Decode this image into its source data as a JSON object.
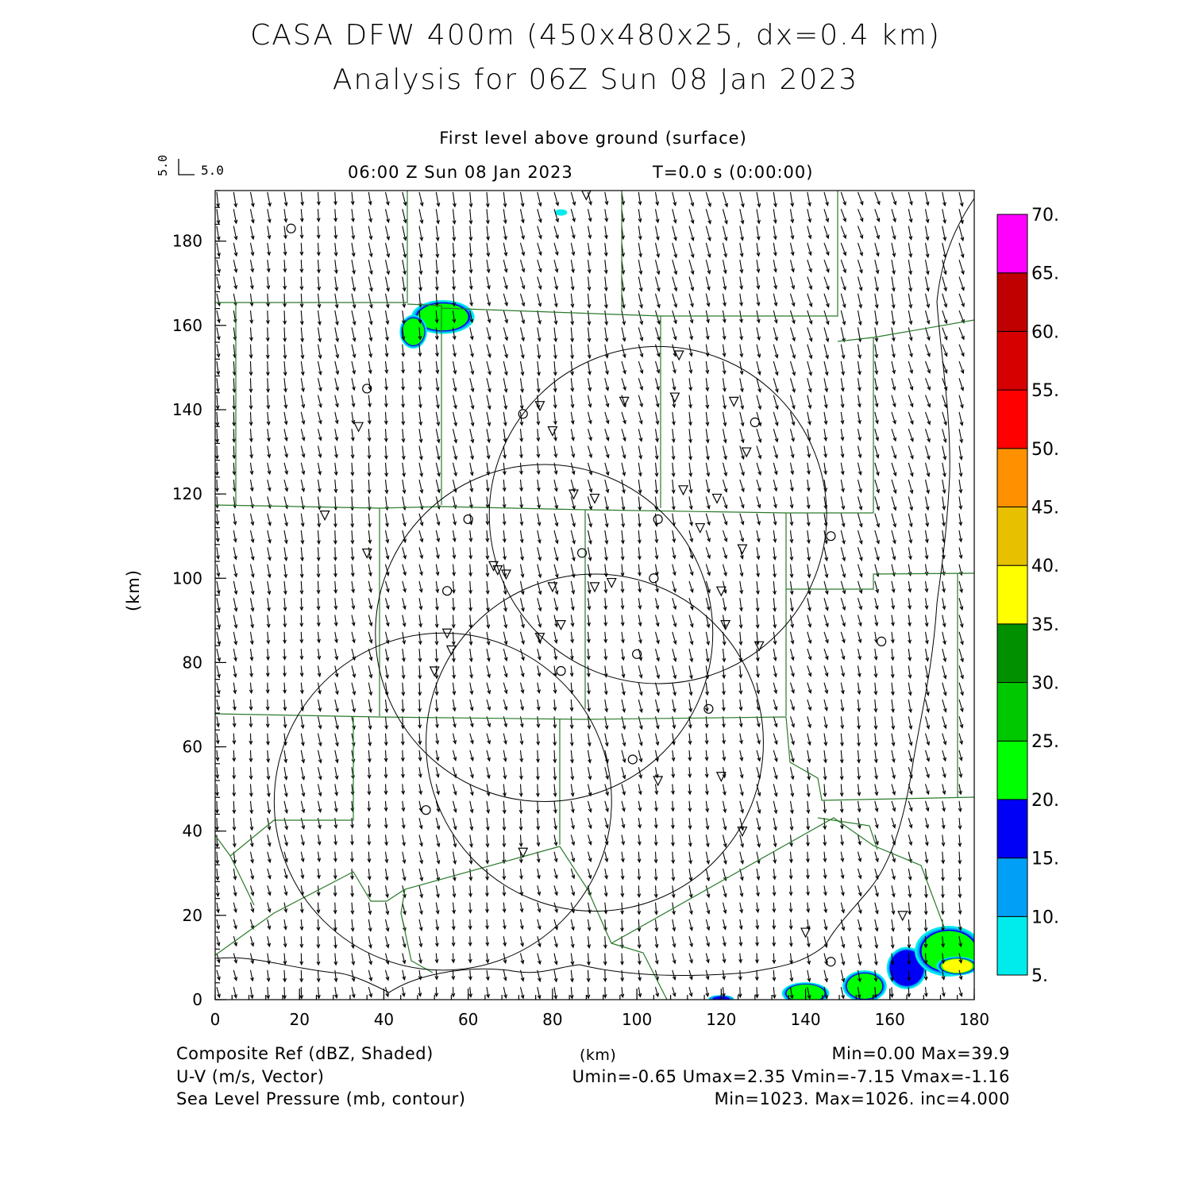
{
  "header": {
    "title_line1": "CASA DFW 400m (450x480x25, dx=0.4 km)",
    "title_line2": "Analysis for 06Z Sun 08 Jan 2023",
    "level": "First level above ground (surface)",
    "valid_time": "06:00 Z Sun 08 Jan 2023",
    "forecast_time": "T=0.0 s (0:00:00)",
    "vector_ref_u": "5.0",
    "vector_ref_v": "5.0"
  },
  "axes": {
    "x_unit": "(km)",
    "y_unit": "(km)",
    "x_ticks": [
      "0",
      "20",
      "40",
      "60",
      "80",
      "100",
      "120",
      "140",
      "160",
      "180"
    ],
    "y_ticks": [
      "0",
      "20",
      "40",
      "60",
      "80",
      "100",
      "120",
      "140",
      "160",
      "180"
    ],
    "xlim": [
      0,
      180
    ],
    "ylim": [
      0,
      192
    ]
  },
  "colorbar": {
    "labels": [
      "5.",
      "10.",
      "15.",
      "20.",
      "25.",
      "30.",
      "35.",
      "40.",
      "45.",
      "50.",
      "55.",
      "60.",
      "65.",
      "70."
    ],
    "colors": [
      "#00ecec",
      "#01a0f6",
      "#0000f6",
      "#00ff00",
      "#00c800",
      "#009000",
      "#ffff00",
      "#e7c000",
      "#ff9000",
      "#ff0000",
      "#d60000",
      "#c00000",
      "#ff00ff"
    ]
  },
  "footer": {
    "row1_left": "Composite Ref (dBZ, Shaded)",
    "row1_mid": "(km)",
    "row1_right": "Min=0.00 Max=39.9",
    "row2_left": "U-V (m/s, Vector)",
    "row2_right": "Umin=-0.65 Umax=2.35 Vmin=-7.15 Vmax=-1.16",
    "row3_left": "Sea Level Pressure (mb, contour)",
    "row3_right": "Min=1023. Max=1026. inc=4.000"
  },
  "map_data": {
    "radar_rings": [
      {
        "cx": 105,
        "cy": 115,
        "r": 40
      },
      {
        "cx": 78,
        "cy": 87,
        "r": 40
      },
      {
        "cx": 90,
        "cy": 61,
        "r": 40
      },
      {
        "cx": 54,
        "cy": 47,
        "r": 40
      }
    ],
    "stations_circle": [
      [
        18,
        183
      ],
      [
        36,
        145
      ],
      [
        73,
        139
      ],
      [
        128,
        137
      ],
      [
        60,
        114
      ],
      [
        105,
        114
      ],
      [
        87,
        106
      ],
      [
        146,
        110
      ],
      [
        55,
        97
      ],
      [
        104,
        100
      ],
      [
        100,
        82
      ],
      [
        82,
        78
      ],
      [
        117,
        69
      ],
      [
        99,
        57
      ],
      [
        50,
        45
      ],
      [
        158,
        85
      ],
      [
        146,
        9
      ]
    ],
    "stations_triangle": [
      [
        88,
        191
      ],
      [
        110,
        153
      ],
      [
        77,
        141
      ],
      [
        97,
        142
      ],
      [
        109,
        143
      ],
      [
        123,
        142
      ],
      [
        34,
        136
      ],
      [
        80,
        135
      ],
      [
        126,
        130
      ],
      [
        111,
        121
      ],
      [
        85,
        120
      ],
      [
        90,
        119
      ],
      [
        119,
        119
      ],
      [
        26,
        115
      ],
      [
        115,
        112
      ],
      [
        36,
        106
      ],
      [
        125,
        107
      ],
      [
        66,
        103
      ],
      [
        67,
        102
      ],
      [
        69,
        101
      ],
      [
        80,
        98
      ],
      [
        90,
        98
      ],
      [
        94,
        99
      ],
      [
        120,
        97
      ],
      [
        82,
        89
      ],
      [
        121,
        89
      ],
      [
        55,
        87
      ],
      [
        77,
        86
      ],
      [
        129,
        84
      ],
      [
        56,
        83
      ],
      [
        52,
        78
      ],
      [
        120,
        53
      ],
      [
        105,
        52
      ],
      [
        125,
        40
      ],
      [
        73,
        35
      ],
      [
        163,
        20
      ],
      [
        140,
        16
      ]
    ],
    "echoes": [
      {
        "x": 82,
        "y": 186.8,
        "rx": 1.2,
        "ry": 0.6,
        "dbz": 7
      },
      {
        "x": 54,
        "y": 162,
        "rx": 6,
        "ry": 3.2,
        "dbz": 24
      },
      {
        "x": 47,
        "y": 158.5,
        "rx": 2.6,
        "ry": 3.2,
        "dbz": 24
      },
      {
        "x": 120,
        "y": 0.2,
        "rx": 2.4,
        "ry": 0.7,
        "dbz": 16
      },
      {
        "x": 140,
        "y": 1.5,
        "rx": 4.5,
        "ry": 2.1,
        "dbz": 24
      },
      {
        "x": 154,
        "y": 3.2,
        "rx": 4.2,
        "ry": 3.0,
        "dbz": 24
      },
      {
        "x": 164,
        "y": 7.5,
        "rx": 3.8,
        "ry": 4.0,
        "dbz": 18
      },
      {
        "x": 174,
        "y": 11.5,
        "rx": 6.5,
        "ry": 4.8,
        "dbz": 24
      },
      {
        "x": 176,
        "y": 8.0,
        "rx": 4.0,
        "ry": 1.8,
        "dbz": 37
      }
    ]
  }
}
